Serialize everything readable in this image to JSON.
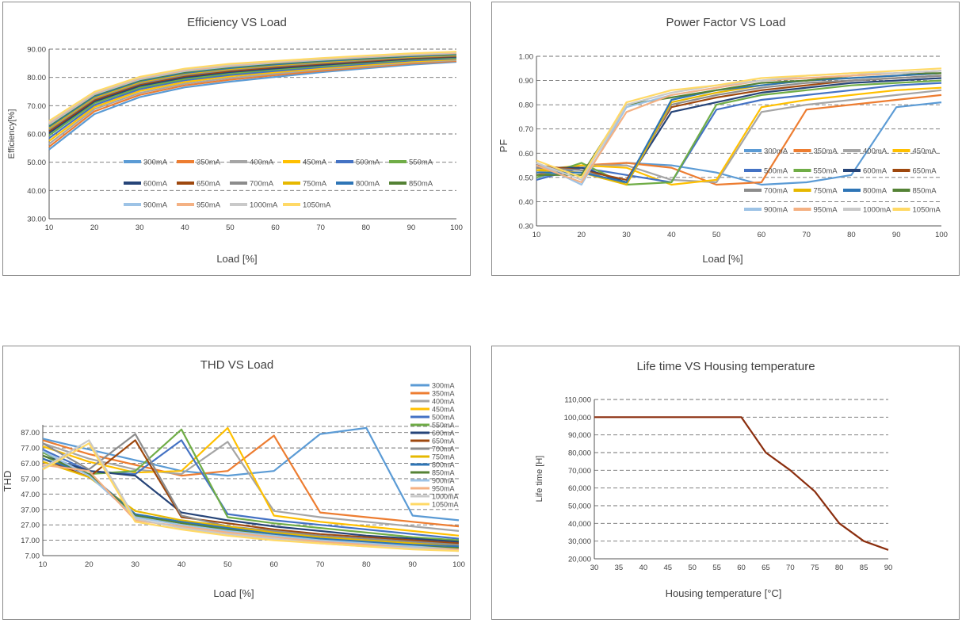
{
  "panels": {
    "eff": {
      "title": "Efficiency VS Load"
    },
    "pf": {
      "title": "Power Factor VS Load"
    },
    "thd": {
      "title": "THD VS Load"
    },
    "life": {
      "title": "Life time VS Housing temperature"
    }
  },
  "series_colors": {
    "300mA": "#5b9bd5",
    "350mA": "#ed7d31",
    "400mA": "#a5a5a5",
    "450mA": "#ffc000",
    "500mA": "#4472c4",
    "550mA": "#70ad47",
    "600mA": "#264478",
    "650mA": "#9e480e",
    "700mA": "#8c8c8c",
    "750mA": "#e6b800",
    "800mA": "#2e75b6",
    "850mA": "#548235",
    "900mA": "#9dc3e6",
    "950mA": "#f4b183",
    "1000mA": "#c9c9c9",
    "1050mA": "#ffd966"
  },
  "chart_data": [
    {
      "id": "eff",
      "type": "line",
      "title": "Efficiency VS Load",
      "xlabel": "Load [%]",
      "ylabel": "Efficiency[%]",
      "xlim": [
        10,
        100
      ],
      "ylim": [
        30,
        90
      ],
      "x": [
        10,
        20,
        30,
        40,
        50,
        60,
        70,
        80,
        90,
        100
      ],
      "xticks": [
        "10",
        "20",
        "30",
        "40",
        "50",
        "60",
        "70",
        "80",
        "90",
        "100"
      ],
      "yticks": [
        "30.00",
        "40.00",
        "50.00",
        "60.00",
        "70.00",
        "80.00",
        "90.00"
      ],
      "grid": "horizontal dashed",
      "legend": "inside, lower-center",
      "series": [
        {
          "name": "300mA",
          "values": [
            54.5,
            67,
            73,
            76.5,
            78.5,
            80.2,
            81.8,
            83.2,
            84.5,
            85.5
          ]
        },
        {
          "name": "350mA",
          "values": [
            55.5,
            68,
            73.8,
            77.2,
            79.2,
            80.8,
            82.3,
            83.6,
            84.9,
            85.8
          ]
        },
        {
          "name": "400mA",
          "values": [
            56.5,
            68.8,
            74.5,
            77.8,
            79.8,
            81.3,
            82.8,
            84,
            85.3,
            86.1
          ]
        },
        {
          "name": "450mA",
          "values": [
            57.5,
            69.5,
            75.2,
            78.4,
            80.4,
            81.8,
            83.2,
            84.4,
            85.6,
            86.4
          ]
        },
        {
          "name": "500mA",
          "values": [
            58.5,
            70.2,
            75.8,
            79,
            80.9,
            82.3,
            83.6,
            84.8,
            86,
            86.7
          ]
        },
        {
          "name": "550mA",
          "values": [
            59.5,
            70.9,
            76.4,
            79.5,
            81.4,
            82.8,
            84,
            85.2,
            86.3,
            87
          ]
        },
        {
          "name": "600mA",
          "values": [
            60.3,
            71.5,
            77,
            80,
            81.9,
            83.2,
            84.4,
            85.5,
            86.6,
            87.3
          ]
        },
        {
          "name": "650mA",
          "values": [
            61,
            72,
            77.5,
            80.5,
            82.3,
            83.6,
            84.8,
            85.8,
            86.9,
            87.5
          ]
        },
        {
          "name": "700mA",
          "values": [
            61.6,
            72.5,
            77.9,
            80.9,
            82.7,
            84,
            85.1,
            86.1,
            87.1,
            87.7
          ]
        },
        {
          "name": "750mA",
          "values": [
            62.1,
            72.9,
            78.3,
            81.3,
            83,
            84.3,
            85.4,
            86.4,
            87.3,
            87.9
          ]
        },
        {
          "name": "800mA",
          "values": [
            62.6,
            73.3,
            78.7,
            81.6,
            83.3,
            84.6,
            85.7,
            86.6,
            87.5,
            88.1
          ]
        },
        {
          "name": "850mA",
          "values": [
            63,
            73.7,
            79,
            81.9,
            83.6,
            84.9,
            86,
            86.9,
            87.7,
            88.3
          ]
        },
        {
          "name": "900mA",
          "values": [
            63.4,
            74,
            79.3,
            82.2,
            83.9,
            85.2,
            86.2,
            87.1,
            87.9,
            88.5
          ]
        },
        {
          "name": "950mA",
          "values": [
            63.8,
            74.3,
            79.6,
            82.5,
            84.2,
            85.4,
            86.4,
            87.3,
            88.1,
            88.7
          ]
        },
        {
          "name": "1000mA",
          "values": [
            64.2,
            74.6,
            79.9,
            82.8,
            84.5,
            85.6,
            86.6,
            87.5,
            88.3,
            88.9
          ]
        },
        {
          "name": "1050mA",
          "values": [
            64.6,
            74.9,
            80.2,
            83.1,
            84.8,
            85.8,
            86.8,
            87.7,
            88.5,
            89.1
          ]
        }
      ]
    },
    {
      "id": "pf",
      "type": "line",
      "title": "Power Factor VS Load",
      "xlabel": "Load [%]",
      "ylabel": "PF",
      "xlim": [
        10,
        100
      ],
      "ylim": [
        0.3,
        1.0
      ],
      "x": [
        10,
        20,
        30,
        40,
        50,
        60,
        70,
        80,
        90,
        100
      ],
      "xticks": [
        "10",
        "20",
        "30",
        "40",
        "50",
        "60",
        "70",
        "80",
        "90",
        "100"
      ],
      "yticks": [
        "0.30",
        "0.40",
        "0.50",
        "0.60",
        "0.70",
        "0.80",
        "0.90",
        "1.00"
      ],
      "grid": "horizontal dashed",
      "legend": "inside, right",
      "series": [
        {
          "name": "300mA",
          "values": [
            0.5,
            0.54,
            0.56,
            0.55,
            0.52,
            0.47,
            0.48,
            0.51,
            0.79,
            0.81
          ]
        },
        {
          "name": "350mA",
          "values": [
            0.51,
            0.55,
            0.56,
            0.54,
            0.47,
            0.48,
            0.78,
            0.8,
            0.82,
            0.84
          ]
        },
        {
          "name": "400mA",
          "values": [
            0.52,
            0.55,
            0.55,
            0.49,
            0.48,
            0.77,
            0.8,
            0.82,
            0.84,
            0.86
          ]
        },
        {
          "name": "450mA",
          "values": [
            0.53,
            0.55,
            0.54,
            0.47,
            0.49,
            0.79,
            0.82,
            0.84,
            0.86,
            0.87
          ]
        },
        {
          "name": "500mA",
          "values": [
            0.49,
            0.54,
            0.51,
            0.48,
            0.78,
            0.82,
            0.84,
            0.86,
            0.88,
            0.89
          ]
        },
        {
          "name": "550mA",
          "values": [
            0.5,
            0.56,
            0.47,
            0.48,
            0.8,
            0.84,
            0.86,
            0.88,
            0.89,
            0.9
          ]
        },
        {
          "name": "600mA",
          "values": [
            0.54,
            0.54,
            0.48,
            0.77,
            0.81,
            0.85,
            0.87,
            0.89,
            0.9,
            0.91
          ]
        },
        {
          "name": "650mA",
          "values": [
            0.55,
            0.53,
            0.49,
            0.79,
            0.83,
            0.86,
            0.88,
            0.9,
            0.91,
            0.92
          ]
        },
        {
          "name": "700mA",
          "values": [
            0.54,
            0.53,
            0.47,
            0.8,
            0.84,
            0.87,
            0.89,
            0.9,
            0.91,
            0.92
          ]
        },
        {
          "name": "750mA",
          "values": [
            0.53,
            0.52,
            0.47,
            0.81,
            0.85,
            0.88,
            0.9,
            0.91,
            0.92,
            0.93
          ]
        },
        {
          "name": "800mA",
          "values": [
            0.52,
            0.52,
            0.48,
            0.82,
            0.86,
            0.88,
            0.9,
            0.91,
            0.92,
            0.93
          ]
        },
        {
          "name": "850mA",
          "values": [
            0.51,
            0.51,
            0.8,
            0.83,
            0.86,
            0.89,
            0.9,
            0.92,
            0.93,
            0.93
          ]
        },
        {
          "name": "900mA",
          "values": [
            0.56,
            0.47,
            0.79,
            0.84,
            0.87,
            0.9,
            0.91,
            0.92,
            0.93,
            0.94
          ]
        },
        {
          "name": "950mA",
          "values": [
            0.55,
            0.48,
            0.77,
            0.84,
            0.87,
            0.9,
            0.91,
            0.92,
            0.93,
            0.94
          ]
        },
        {
          "name": "1000mA",
          "values": [
            0.56,
            0.49,
            0.8,
            0.85,
            0.88,
            0.9,
            0.92,
            0.93,
            0.93,
            0.94
          ]
        },
        {
          "name": "1050mA",
          "values": [
            0.57,
            0.5,
            0.81,
            0.86,
            0.88,
            0.91,
            0.92,
            0.93,
            0.94,
            0.95
          ]
        }
      ]
    },
    {
      "id": "thd",
      "type": "line",
      "title": "THD VS Load",
      "xlabel": "Load [%]",
      "ylabel": "THD",
      "xlim": [
        10,
        100
      ],
      "ylim": [
        7,
        92
      ],
      "x": [
        10,
        20,
        30,
        40,
        50,
        60,
        70,
        80,
        90,
        100
      ],
      "xticks": [
        "10",
        "20",
        "30",
        "40",
        "50",
        "60",
        "70",
        "80",
        "90",
        "100"
      ],
      "yticks": [
        "7.00",
        "17.00",
        "27.00",
        "37.00",
        "47.00",
        "57.00",
        "67.00",
        "77.00",
        "87.00"
      ],
      "grid": "horizontal dashed",
      "legend": "right, top",
      "series": [
        {
          "name": "300mA",
          "values": [
            83,
            76,
            69,
            62,
            59,
            62,
            86,
            90,
            33,
            30
          ]
        },
        {
          "name": "350mA",
          "values": [
            82,
            73,
            66,
            59,
            62,
            85,
            35,
            32,
            29,
            26
          ]
        },
        {
          "name": "400mA",
          "values": [
            80,
            70,
            63,
            60,
            81,
            36,
            32,
            29,
            26,
            23
          ]
        },
        {
          "name": "450mA",
          "values": [
            78,
            68,
            61,
            62,
            90,
            33,
            29,
            26,
            23,
            20
          ]
        },
        {
          "name": "500mA",
          "values": [
            76,
            62,
            60,
            82,
            34,
            30,
            27,
            24,
            21,
            18
          ]
        },
        {
          "name": "550mA",
          "values": [
            74,
            60,
            62,
            89,
            32,
            28,
            25,
            22,
            19,
            17
          ]
        },
        {
          "name": "600mA",
          "values": [
            72,
            62,
            59,
            35,
            30,
            26,
            23,
            20,
            18,
            16
          ]
        },
        {
          "name": "650mA",
          "values": [
            70,
            58,
            82,
            32,
            28,
            24,
            21,
            19,
            17,
            15
          ]
        },
        {
          "name": "700mA",
          "values": [
            80,
            63,
            86,
            33,
            26,
            23,
            20,
            18,
            16,
            14
          ]
        },
        {
          "name": "750mA",
          "values": [
            68,
            58,
            36,
            30,
            26,
            22,
            19,
            17,
            15,
            13
          ]
        },
        {
          "name": "800mA",
          "values": [
            70,
            60,
            34,
            29,
            25,
            21,
            18,
            16,
            14,
            13
          ]
        },
        {
          "name": "850mA",
          "values": [
            72,
            60,
            33,
            28,
            24,
            20,
            17,
            15,
            13,
            12
          ]
        },
        {
          "name": "900mA",
          "values": [
            75,
            59,
            32,
            27,
            23,
            20,
            17,
            15,
            13,
            11
          ]
        },
        {
          "name": "950mA",
          "values": [
            66,
            62,
            30,
            26,
            22,
            19,
            16,
            14,
            12,
            11
          ]
        },
        {
          "name": "1000mA",
          "values": [
            64,
            82,
            31,
            25,
            21,
            18,
            15,
            13,
            12,
            10
          ]
        },
        {
          "name": "1050mA",
          "values": [
            63,
            80,
            29,
            24,
            20,
            17,
            15,
            13,
            11,
            10
          ]
        }
      ]
    },
    {
      "id": "life",
      "type": "line",
      "title": "Life time VS Housing temperature",
      "xlabel": "Housing temperature [°C]",
      "ylabel": "Life time [H]",
      "xlim": [
        30,
        90
      ],
      "ylim": [
        20000,
        110000
      ],
      "xticks": [
        "30",
        "35",
        "40",
        "45",
        "50",
        "55",
        "60",
        "65",
        "70",
        "75",
        "80",
        "85",
        "90"
      ],
      "yticks": [
        "20,000",
        "30,000",
        "40,000",
        "50,000",
        "60,000",
        "70,000",
        "80,000",
        "90,000",
        "100,000",
        "110,000"
      ],
      "grid": "horizontal dashed",
      "series": [
        {
          "color": "#8b2e0e",
          "x": [
            30,
            35,
            40,
            45,
            50,
            55,
            60,
            65,
            70,
            75,
            80,
            85,
            90
          ],
          "values": [
            100000,
            100000,
            100000,
            100000,
            100000,
            100000,
            100000,
            80000,
            70000,
            58000,
            40000,
            30000,
            25000
          ]
        }
      ]
    }
  ]
}
